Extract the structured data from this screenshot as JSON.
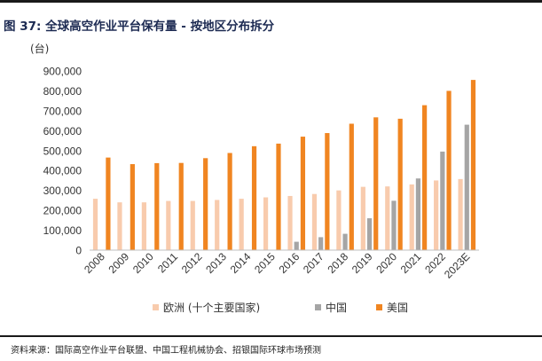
{
  "figure": {
    "title": "图 37: 全球高空作业平台保有量 - 按地区分布拆分",
    "source": "资料来源：国际高空作业平台联盟、中国工程机械协会、招银国际环球市场预测"
  },
  "colors": {
    "europe": "#f8cbad",
    "china": "#a5a5a5",
    "usa": "#f08521",
    "title": "#1c2a52"
  },
  "chart_data": {
    "type": "bar",
    "unit_label": "(台)",
    "categories": [
      "2008",
      "2009",
      "2010",
      "2011",
      "2012",
      "2013",
      "2014",
      "2015",
      "2016",
      "2017",
      "2018",
      "2019",
      "2020",
      "2021",
      "2022",
      "2023E"
    ],
    "series": [
      {
        "name": "欧洲 (十个主要国家)",
        "key": "europe",
        "values": [
          258000,
          240000,
          240000,
          247000,
          247000,
          252000,
          258000,
          265000,
          272000,
          282000,
          300000,
          318000,
          320000,
          330000,
          350000,
          357000
        ]
      },
      {
        "name": "中国",
        "key": "china",
        "values": [
          null,
          null,
          null,
          null,
          null,
          null,
          null,
          null,
          42000,
          65000,
          82000,
          160000,
          248000,
          360000,
          495000,
          630000
        ]
      },
      {
        "name": "美国",
        "key": "usa",
        "values": [
          465000,
          432000,
          437000,
          438000,
          462000,
          488000,
          522000,
          535000,
          570000,
          588000,
          635000,
          667000,
          660000,
          728000,
          800000,
          855000
        ]
      }
    ],
    "ylim": [
      0,
      900000
    ],
    "yticks": [
      "0",
      "100,000",
      "200,000",
      "300,000",
      "400,000",
      "500,000",
      "600,000",
      "700,000",
      "800,000",
      "900,000"
    ],
    "legend_position": "bottom",
    "grid": false
  }
}
